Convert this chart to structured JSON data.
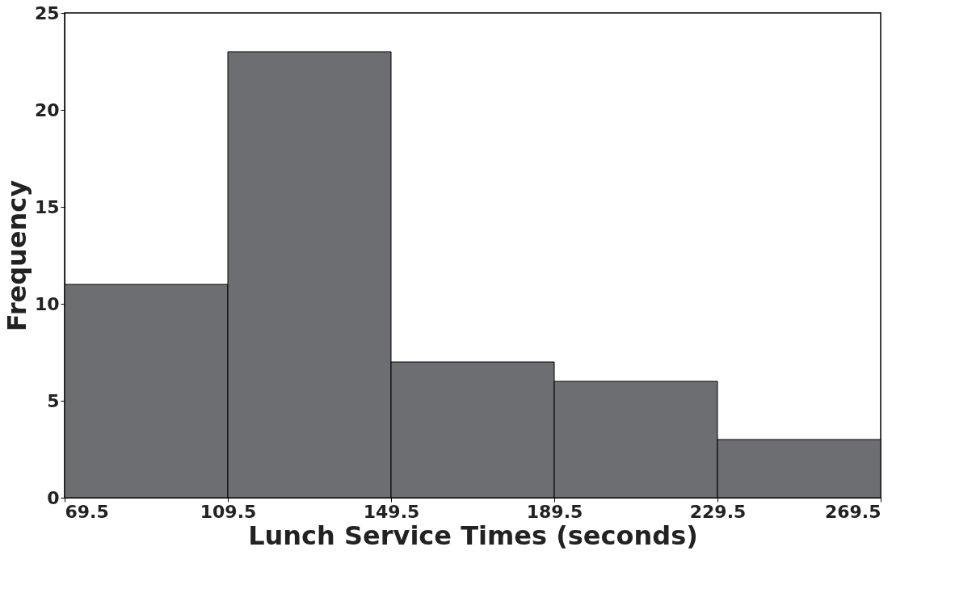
{
  "chart_data": {
    "type": "histogram",
    "xlabel": "Lunch Service Times (seconds)",
    "ylabel": "Frequency",
    "bins": [
      69.5,
      109.5,
      149.5,
      189.5,
      229.5,
      269.5
    ],
    "values": [
      11,
      23,
      7,
      6,
      3
    ],
    "color": "#6d6e71",
    "xlim": [
      69.5,
      269.5
    ],
    "xticks": [
      69.5,
      109.5,
      149.5,
      189.5,
      229.5,
      269.5
    ],
    "ylim": [
      0,
      25
    ],
    "yticks": [
      0,
      5,
      10,
      15,
      20,
      25
    ]
  }
}
